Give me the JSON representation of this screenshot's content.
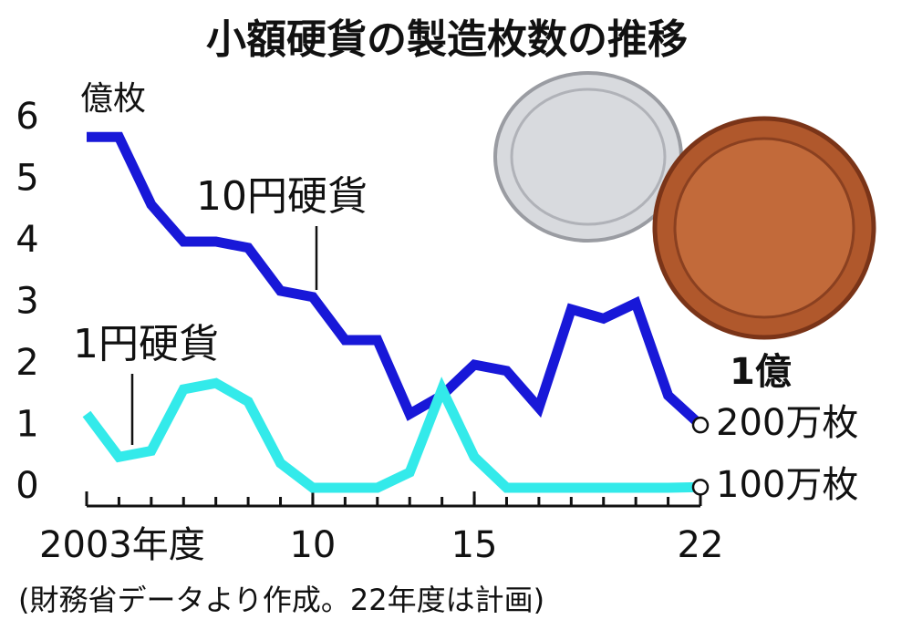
{
  "chart_data": {
    "type": "line",
    "title": "小額硬貨の製造枚数の推移",
    "y_unit": "億枚",
    "x": [
      2003,
      2004,
      2005,
      2006,
      2007,
      2008,
      2009,
      2010,
      2011,
      2012,
      2013,
      2014,
      2015,
      2016,
      2017,
      2018,
      2019,
      2020,
      2021,
      2022
    ],
    "series": [
      {
        "name": "10円硬貨",
        "color": "#1818d8",
        "values": [
          5.7,
          5.7,
          4.6,
          4.0,
          4.0,
          3.9,
          3.2,
          3.1,
          2.4,
          2.4,
          1.2,
          1.5,
          2.0,
          1.9,
          1.3,
          2.9,
          2.75,
          3.0,
          1.5,
          1.02
        ]
      },
      {
        "name": "1円硬貨",
        "color": "#33eaea",
        "values": [
          1.2,
          0.5,
          0.6,
          1.6,
          1.7,
          1.4,
          0.4,
          0,
          0,
          0,
          0.25,
          1.6,
          0.5,
          0,
          0,
          0,
          0,
          0,
          0,
          0.01
        ]
      }
    ],
    "end_labels": [
      [
        "1億",
        "200万枚"
      ],
      [
        "100万枚"
      ]
    ],
    "xlim": [
      2003,
      2022
    ],
    "xticks": [
      {
        "value": 2003,
        "label": "2003年度"
      },
      {
        "value": 2010,
        "label": "10"
      },
      {
        "value": 2015,
        "label": "15"
      },
      {
        "value": 2022,
        "label": "22"
      }
    ],
    "ylim": [
      0,
      6
    ],
    "yticks": [
      0,
      1,
      2,
      3,
      4,
      5,
      6
    ],
    "source": "(財務省データより作成。22年度は計画)"
  }
}
